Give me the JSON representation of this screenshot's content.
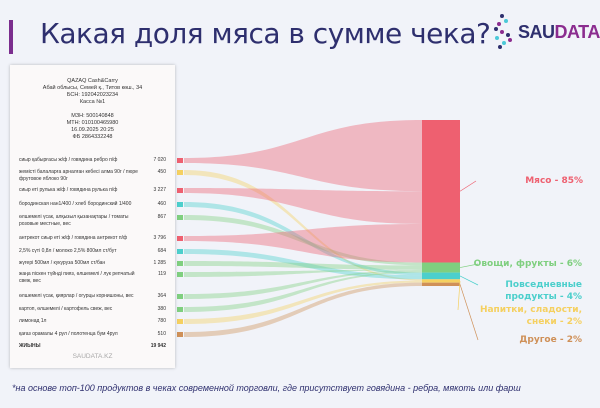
{
  "title": "Какая доля мяса в сумме чека?",
  "logo": {
    "part1": "SAU",
    "part2": "DATA"
  },
  "receipt": {
    "header": [
      "QAZAQ Cash&Carry",
      "Абай облысы, Семей қ., Титов көш., 34",
      "БСН: 192042023234",
      "Касса №1"
    ],
    "meta": [
      "МЗН: 500140848",
      "МТН: 010100465980",
      "16.09.2025 20:25",
      "ФБ 2864332248"
    ],
    "items": [
      {
        "name": "сиыр қабырғасы ж/ф / говядина ребро п/ф",
        "value": "7 020",
        "category": "meat"
      },
      {
        "name": "жемісті балаларға арналған кебесі алма 90г / пюре фрутовое яблоко 90г",
        "value": "450",
        "category": "drinks"
      },
      {
        "name": "сиыр еті рулька ж/ф / говядина рулька п/ф",
        "value": "3 227",
        "category": "meat"
      },
      {
        "name": "бородинская нан1/400 / хлеб бородинский 1/400",
        "value": "460",
        "category": "everyday"
      },
      {
        "name": "өлшемелі үсак, алқызыл қызанақтары / томаты розовые местные, вес",
        "value": "867",
        "category": "veg"
      },
      {
        "name": "антрекот сиыр еті ж/ф / говядина антрекот п/ф",
        "value": "3 796",
        "category": "meat"
      },
      {
        "name": "2,5% сүті 0,8л / молоко 2,5% 800мл ст/бут",
        "value": "684",
        "category": "everyday"
      },
      {
        "name": "жүгері 500мл / кукуруза 500мл ст/бан",
        "value": "1 285",
        "category": "veg"
      },
      {
        "name": "жаңа піскен түйнді пияз, өлшемелі / лук репчатый свеж, вес",
        "value": "119",
        "category": "veg"
      },
      {
        "name": "өлшемелі үсак, қиярлар / огурцы корнишоны, вес",
        "value": "364",
        "category": "veg"
      },
      {
        "name": "картоп, өлшемелі / картофель свеж, вес",
        "value": "380",
        "category": "veg"
      },
      {
        "name": "лимонад 1л",
        "value": "780",
        "category": "drinks"
      },
      {
        "name": "қағаз орамалы 4 рул / полотенца бум 4рул",
        "value": "510",
        "category": "other"
      }
    ],
    "total_label": "ЖИЫНЫ",
    "total_value": "19 942",
    "site": "SAUDATA.KZ"
  },
  "categories": [
    {
      "id": "meat",
      "label": "Мясо - 85%",
      "share": 85,
      "color": "#ee6070"
    },
    {
      "id": "veg",
      "label": "Овощи, фрукты - 6%",
      "share": 6,
      "color": "#7fcf7f"
    },
    {
      "id": "everyday",
      "label": "Повседневные продукты - 4%",
      "share": 4,
      "color": "#4ccfcc"
    },
    {
      "id": "drinks",
      "label": "Напитки, сладости, снеки - 2%",
      "share": 2,
      "color": "#f5d060"
    },
    {
      "id": "other",
      "label": "Другое - 2%",
      "share": 2,
      "color": "#cf9058"
    }
  ],
  "footnote": "*на основе топ-100 продуктов в чеках современной торговли, где присутствует говядина - ребра, мякоть или фарш"
}
